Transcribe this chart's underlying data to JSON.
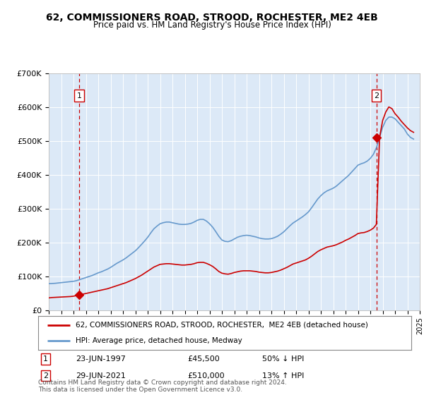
{
  "title": "62, COMMISSIONERS ROAD, STROOD, ROCHESTER, ME2 4EB",
  "subtitle": "Price paid vs. HM Land Registry's House Price Index (HPI)",
  "ylim": [
    0,
    700000
  ],
  "yticks": [
    0,
    100000,
    200000,
    300000,
    400000,
    500000,
    600000,
    700000
  ],
  "ytick_labels": [
    "£0",
    "£100K",
    "£200K",
    "£300K",
    "£400K",
    "£500K",
    "£600K",
    "£700K"
  ],
  "plot_bg_color": "#dce9f7",
  "transaction1": {
    "year": 1997.47,
    "price": 45500,
    "label": "1",
    "date": "23-JUN-1997",
    "pct": "50% ↓ HPI"
  },
  "transaction2": {
    "year": 2021.49,
    "price": 510000,
    "label": "2",
    "date": "29-JUN-2021",
    "pct": "13% ↑ HPI"
  },
  "legend_entry1": "62, COMMISSIONERS ROAD, STROOD, ROCHESTER,  ME2 4EB (detached house)",
  "legend_entry2": "HPI: Average price, detached house, Medway",
  "note": "Contains HM Land Registry data © Crown copyright and database right 2024.\nThis data is licensed under the Open Government Licence v3.0.",
  "red_line_color": "#cc0000",
  "blue_line_color": "#6699cc",
  "marker_color": "#cc0000",
  "dashed_line_color": "#cc0000",
  "hpi_years": [
    1995.0,
    1995.25,
    1995.5,
    1995.75,
    1996.0,
    1996.25,
    1996.5,
    1996.75,
    1997.0,
    1997.25,
    1997.5,
    1997.75,
    1998.0,
    1998.25,
    1998.5,
    1998.75,
    1999.0,
    1999.25,
    1999.5,
    1999.75,
    2000.0,
    2000.25,
    2000.5,
    2000.75,
    2001.0,
    2001.25,
    2001.5,
    2001.75,
    2002.0,
    2002.25,
    2002.5,
    2002.75,
    2003.0,
    2003.25,
    2003.5,
    2003.75,
    2004.0,
    2004.25,
    2004.5,
    2004.75,
    2005.0,
    2005.25,
    2005.5,
    2005.75,
    2006.0,
    2006.25,
    2006.5,
    2006.75,
    2007.0,
    2007.25,
    2007.5,
    2007.75,
    2008.0,
    2008.25,
    2008.5,
    2008.75,
    2009.0,
    2009.25,
    2009.5,
    2009.75,
    2010.0,
    2010.25,
    2010.5,
    2010.75,
    2011.0,
    2011.25,
    2011.5,
    2011.75,
    2012.0,
    2012.25,
    2012.5,
    2012.75,
    2013.0,
    2013.25,
    2013.5,
    2013.75,
    2014.0,
    2014.25,
    2014.5,
    2014.75,
    2015.0,
    2015.25,
    2015.5,
    2015.75,
    2016.0,
    2016.25,
    2016.5,
    2016.75,
    2017.0,
    2017.25,
    2017.5,
    2017.75,
    2018.0,
    2018.25,
    2018.5,
    2018.75,
    2019.0,
    2019.25,
    2019.5,
    2019.75,
    2020.0,
    2020.25,
    2020.5,
    2020.75,
    2021.0,
    2021.25,
    2021.5,
    2021.75,
    2022.0,
    2022.25,
    2022.5,
    2022.75,
    2023.0,
    2023.25,
    2023.5,
    2023.75,
    2024.0,
    2024.25,
    2024.5
  ],
  "hpi_values": [
    78000,
    78500,
    79000,
    80000,
    81000,
    82000,
    83000,
    84000,
    85000,
    87000,
    90000,
    93000,
    96000,
    99000,
    102000,
    106000,
    110000,
    113000,
    117000,
    121000,
    126000,
    132000,
    138000,
    143000,
    148000,
    154000,
    161000,
    168000,
    175000,
    184000,
    194000,
    204000,
    215000,
    228000,
    240000,
    248000,
    255000,
    258000,
    260000,
    260000,
    258000,
    256000,
    254000,
    253000,
    253000,
    254000,
    256000,
    260000,
    265000,
    268000,
    268000,
    263000,
    255000,
    245000,
    232000,
    218000,
    207000,
    203000,
    202000,
    205000,
    210000,
    215000,
    218000,
    220000,
    221000,
    220000,
    218000,
    216000,
    213000,
    211000,
    210000,
    210000,
    211000,
    214000,
    218000,
    224000,
    231000,
    240000,
    249000,
    257000,
    263000,
    269000,
    275000,
    282000,
    290000,
    302000,
    315000,
    328000,
    338000,
    346000,
    352000,
    356000,
    360000,
    366000,
    374000,
    382000,
    390000,
    398000,
    408000,
    418000,
    428000,
    432000,
    435000,
    440000,
    448000,
    460000,
    480000,
    510000,
    540000,
    560000,
    570000,
    570000,
    565000,
    555000,
    545000,
    535000,
    520000,
    510000,
    505000
  ],
  "red_hpi_years": [
    1995.0,
    1995.25,
    1995.5,
    1995.75,
    1996.0,
    1996.25,
    1996.5,
    1996.75,
    1997.0,
    1997.25,
    1997.47,
    1997.75,
    1998.0,
    1998.25,
    1998.5,
    1998.75,
    1999.0,
    1999.25,
    1999.5,
    1999.75,
    2000.0,
    2000.25,
    2000.5,
    2000.75,
    2001.0,
    2001.25,
    2001.5,
    2001.75,
    2002.0,
    2002.25,
    2002.5,
    2002.75,
    2003.0,
    2003.25,
    2003.5,
    2003.75,
    2004.0,
    2004.25,
    2004.5,
    2004.75,
    2005.0,
    2005.25,
    2005.5,
    2005.75,
    2006.0,
    2006.25,
    2006.5,
    2006.75,
    2007.0,
    2007.25,
    2007.5,
    2007.75,
    2008.0,
    2008.25,
    2008.5,
    2008.75,
    2009.0,
    2009.25,
    2009.5,
    2009.75,
    2010.0,
    2010.25,
    2010.5,
    2010.75,
    2011.0,
    2011.25,
    2011.5,
    2011.75,
    2012.0,
    2012.25,
    2012.5,
    2012.75,
    2013.0,
    2013.25,
    2013.5,
    2013.75,
    2014.0,
    2014.25,
    2014.5,
    2014.75,
    2015.0,
    2015.25,
    2015.5,
    2015.75,
    2016.0,
    2016.25,
    2016.5,
    2016.75,
    2017.0,
    2017.25,
    2017.5,
    2017.75,
    2018.0,
    2018.25,
    2018.5,
    2018.75,
    2019.0,
    2019.25,
    2019.5,
    2019.75,
    2020.0,
    2020.25,
    2020.5,
    2020.75,
    2021.0,
    2021.25,
    2021.49,
    2021.75,
    2022.0,
    2022.25,
    2022.5,
    2022.75,
    2023.0,
    2023.25,
    2023.5,
    2023.75,
    2024.0,
    2024.25,
    2024.5
  ],
  "red_hpi_values": [
    36000,
    37000,
    37500,
    38000,
    38500,
    39000,
    39500,
    40000,
    41000,
    43000,
    45500,
    47000,
    49000,
    51000,
    53000,
    55000,
    57000,
    59000,
    61000,
    63000,
    66000,
    69000,
    72000,
    75000,
    78000,
    81000,
    85000,
    89000,
    93000,
    98000,
    103000,
    109000,
    115000,
    121000,
    127000,
    131000,
    135000,
    136000,
    137000,
    137000,
    136000,
    135000,
    134000,
    133000,
    133000,
    134000,
    135000,
    137000,
    140000,
    141000,
    141000,
    138000,
    134000,
    129000,
    122000,
    114000,
    109000,
    107000,
    106000,
    108000,
    111000,
    113000,
    115000,
    116000,
    116000,
    116000,
    115000,
    114000,
    112000,
    111000,
    110000,
    110000,
    111000,
    113000,
    115000,
    118000,
    122000,
    126000,
    131000,
    136000,
    139000,
    142000,
    145000,
    148000,
    153000,
    159000,
    166000,
    173000,
    178000,
    182000,
    186000,
    188000,
    190000,
    193000,
    197000,
    201000,
    206000,
    210000,
    215000,
    220000,
    226000,
    228000,
    229000,
    232000,
    236000,
    242000,
    253000,
    510000,
    560000,
    585000,
    600000,
    595000,
    580000,
    570000,
    558000,
    548000,
    538000,
    530000,
    525000
  ]
}
